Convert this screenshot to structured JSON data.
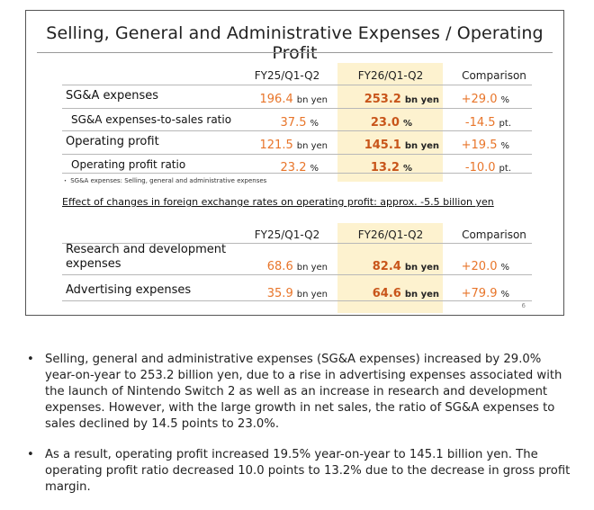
{
  "slide": {
    "title": "Selling, General and Administrative Expenses / Operating Profit",
    "page_number": "6",
    "table1": {
      "headers": [
        "FY25/Q1-Q2",
        "FY26/Q1-Q2",
        "Comparison"
      ],
      "rows": [
        {
          "label": "SG&A expenses",
          "prev": "196.4",
          "prev_unit": "bn yen",
          "curr": "253.2",
          "curr_unit": "bn yen",
          "cmp": "+29.0",
          "cmp_unit": "%"
        },
        {
          "label": "SG&A expenses-to-sales ratio",
          "prev": "37.5",
          "prev_unit": "%",
          "curr": "23.0",
          "curr_unit": "%",
          "cmp": "-14.5",
          "cmp_unit": "pt."
        },
        {
          "label": "Operating profit",
          "prev": "121.5",
          "prev_unit": "bn yen",
          "curr": "145.1",
          "curr_unit": "bn yen",
          "cmp": "+19.5",
          "cmp_unit": "%"
        },
        {
          "label": "Operating profit ratio",
          "prev": "23.2",
          "prev_unit": "%",
          "curr": "13.2",
          "curr_unit": "%",
          "cmp": "-10.0",
          "cmp_unit": "pt."
        }
      ],
      "footnote": "・ SG&A expenses: Selling, general and administrative expenses"
    },
    "fx_note": "Effect of changes in foreign exchange rates on operating profit: approx. -5.5 billion yen",
    "table2": {
      "headers": [
        "FY25/Q1-Q2",
        "FY26/Q1-Q2",
        "Comparison"
      ],
      "rows": [
        {
          "label_line1": "Research and development",
          "label_line2": "expenses",
          "prev": "68.6",
          "prev_unit": "bn yen",
          "curr": "82.4",
          "curr_unit": "bn yen",
          "cmp": "+20.0",
          "cmp_unit": "%"
        },
        {
          "label_line1": "Advertising expenses",
          "label_line2": "",
          "prev": "35.9",
          "prev_unit": "bn yen",
          "curr": "64.6",
          "curr_unit": "bn yen",
          "cmp": "+79.9",
          "cmp_unit": "%"
        }
      ]
    }
  },
  "bullets": [
    "Selling, general and administrative expenses (SG&A expenses) increased by 29.0% year-on-year to 253.2 billion yen, due to a rise in advertising expenses associated with the launch of Nintendo Switch 2 as well as an increase in research and development expenses. However, with the large growth in net sales, the ratio of SG&A expenses to sales declined by 14.5 points to 23.0%.",
    "As a result, operating profit increased 19.5% year-on-year to 145.1 billion yen. The operating profit ratio decreased 10.0 points to 13.2% due to the decrease in gross profit margin."
  ]
}
